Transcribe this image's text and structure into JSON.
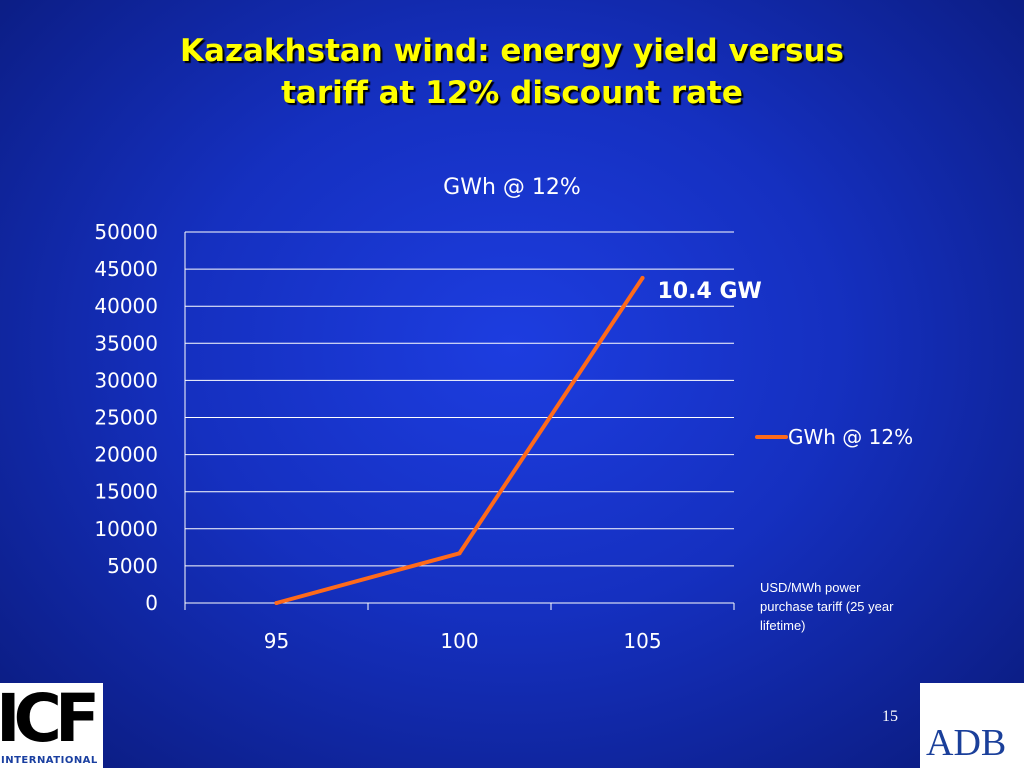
{
  "slide": {
    "title_line1": "Kazakhstan wind: energy yield versus",
    "title_line2": "tariff at 12% discount rate",
    "page_number": "15",
    "axis_note": "USD/MWh power purchase tariff (25 year lifetime)",
    "logos": {
      "left": "ICF",
      "left_sub": "INTERNATIONAL",
      "right": "ADB"
    }
  },
  "chart_data": {
    "type": "line",
    "title": "GWh @ 12%",
    "categories": [
      "95",
      "100",
      "105"
    ],
    "series": [
      {
        "name": "GWh @ 12%",
        "values": [
          0,
          6700,
          43800
        ],
        "color": "#ff6a1a"
      }
    ],
    "ylim": [
      0,
      50000
    ],
    "yticks": [
      0,
      5000,
      10000,
      15000,
      20000,
      25000,
      30000,
      35000,
      40000,
      45000,
      50000
    ],
    "grid": true,
    "legend": "right",
    "annotation": {
      "text": "10.4 GW",
      "category": "105"
    },
    "colors": {
      "gridline": "#ffffff",
      "text": "#ffffff",
      "title": "#ffff00"
    }
  }
}
